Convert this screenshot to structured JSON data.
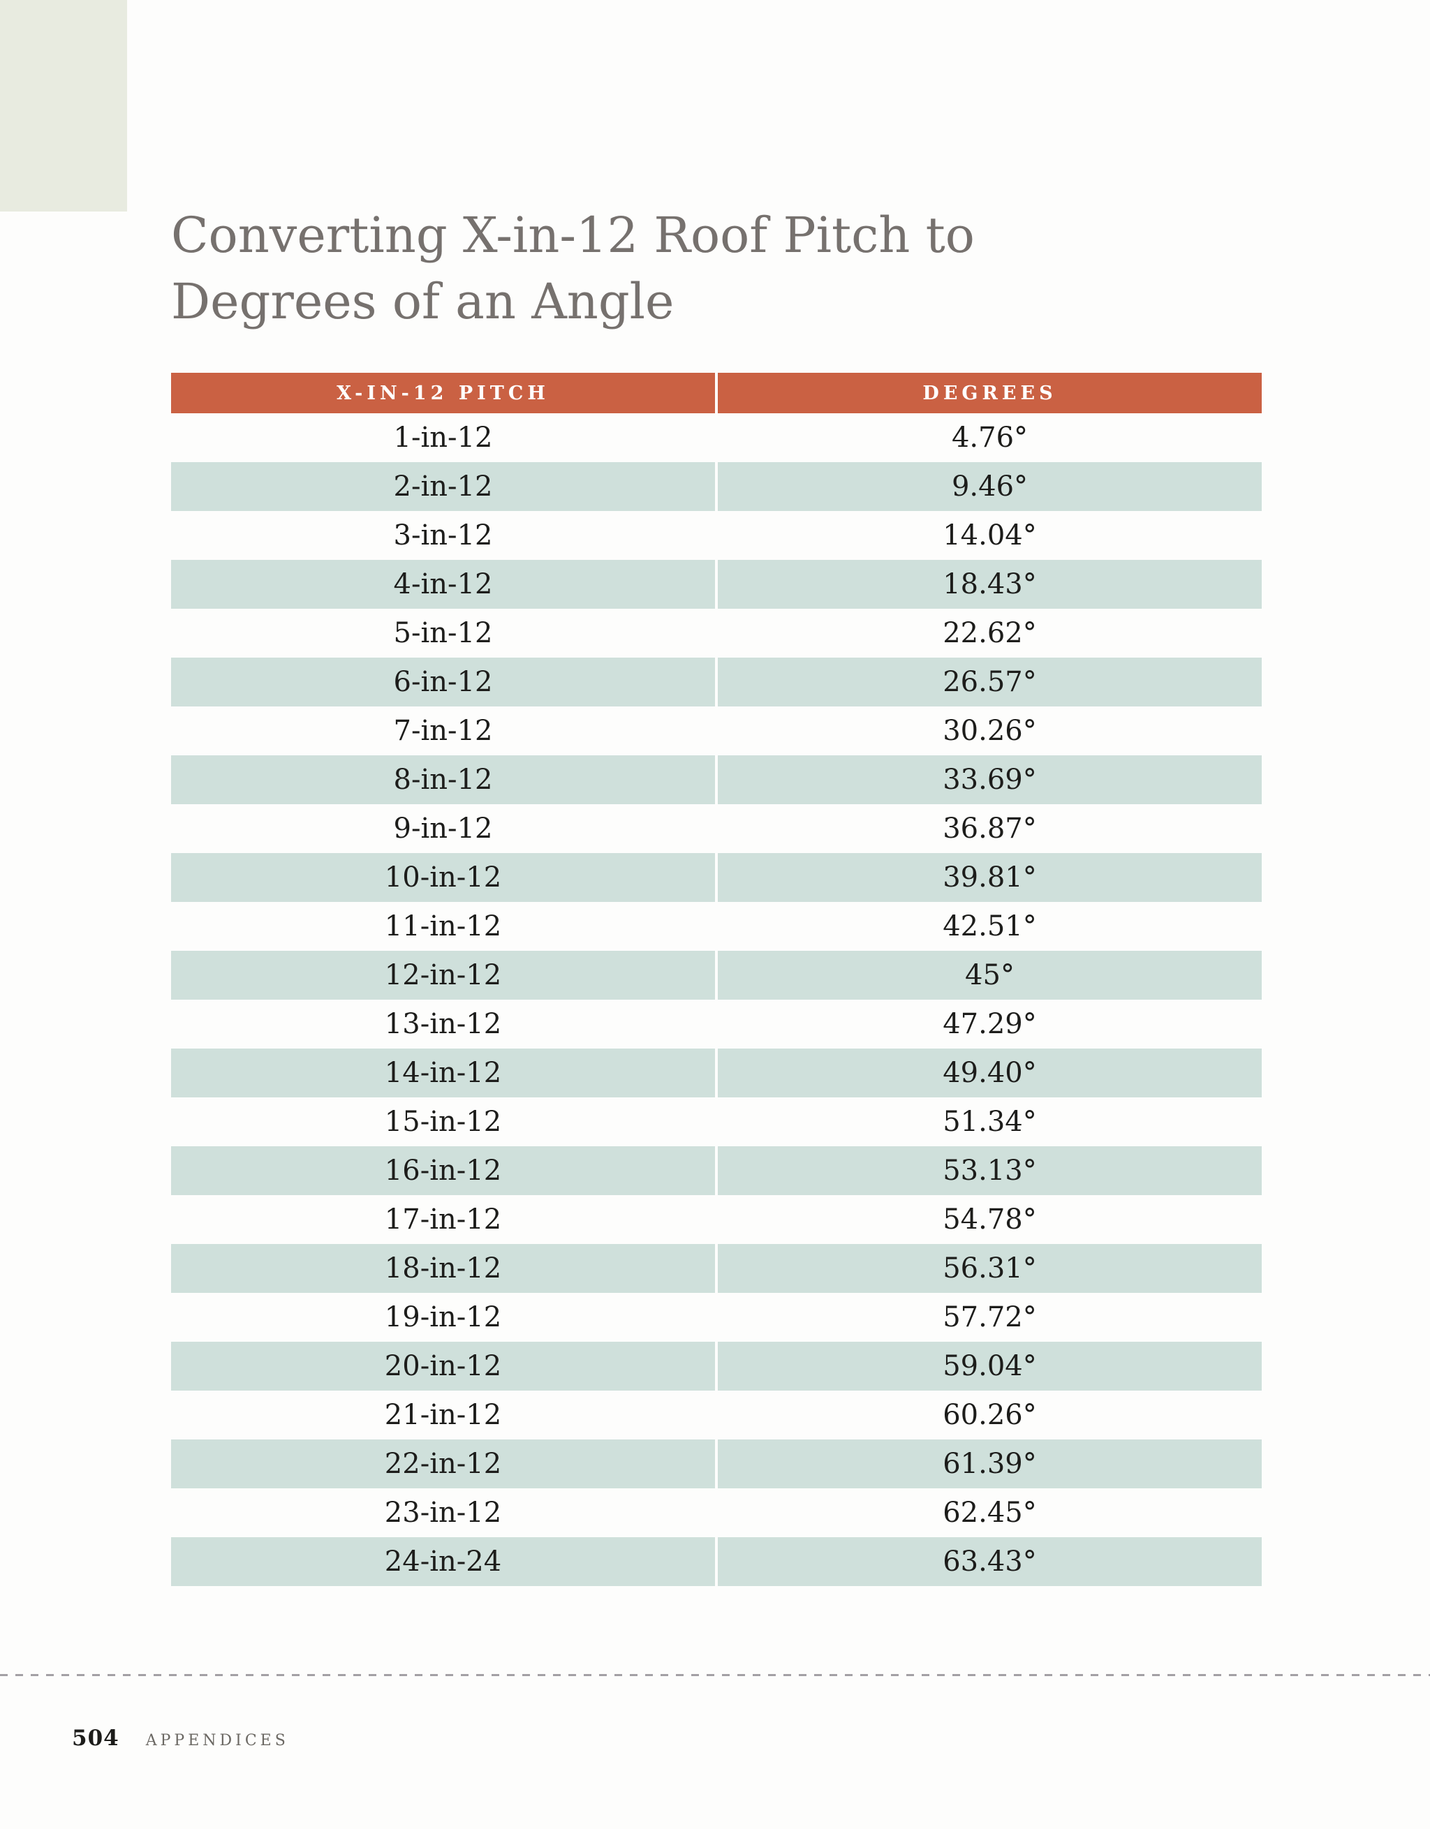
{
  "page": {
    "title_line1": "Converting X-in-12 Roof Pitch to",
    "title_line2": "Degrees of an Angle",
    "footer": {
      "page_number": "504",
      "section": "APPENDICES"
    }
  },
  "colors": {
    "header_bg": "#ca6143",
    "row_alt_bg": "#cfe0db",
    "corner_block_bg": "#e8ebe0",
    "title_text": "#76716e",
    "body_text": "#1d1d1b",
    "divider_dash": "#a3a0a4"
  },
  "table": {
    "headers": [
      "X-IN-12 PITCH",
      "DEGREES"
    ],
    "rows": [
      {
        "pitch": "1-in-12",
        "degrees": "4.76°"
      },
      {
        "pitch": "2-in-12",
        "degrees": "9.46°"
      },
      {
        "pitch": "3-in-12",
        "degrees": "14.04°"
      },
      {
        "pitch": "4-in-12",
        "degrees": "18.43°"
      },
      {
        "pitch": "5-in-12",
        "degrees": "22.62°"
      },
      {
        "pitch": "6-in-12",
        "degrees": "26.57°"
      },
      {
        "pitch": "7-in-12",
        "degrees": "30.26°"
      },
      {
        "pitch": "8-in-12",
        "degrees": "33.69°"
      },
      {
        "pitch": "9-in-12",
        "degrees": "36.87°"
      },
      {
        "pitch": "10-in-12",
        "degrees": "39.81°"
      },
      {
        "pitch": "11-in-12",
        "degrees": "42.51°"
      },
      {
        "pitch": "12-in-12",
        "degrees": "45°"
      },
      {
        "pitch": "13-in-12",
        "degrees": "47.29°"
      },
      {
        "pitch": "14-in-12",
        "degrees": "49.40°"
      },
      {
        "pitch": "15-in-12",
        "degrees": "51.34°"
      },
      {
        "pitch": "16-in-12",
        "degrees": "53.13°"
      },
      {
        "pitch": "17-in-12",
        "degrees": "54.78°"
      },
      {
        "pitch": "18-in-12",
        "degrees": "56.31°"
      },
      {
        "pitch": "19-in-12",
        "degrees": "57.72°"
      },
      {
        "pitch": "20-in-12",
        "degrees": "59.04°"
      },
      {
        "pitch": "21-in-12",
        "degrees": "60.26°"
      },
      {
        "pitch": "22-in-12",
        "degrees": "61.39°"
      },
      {
        "pitch": "23-in-12",
        "degrees": "62.45°"
      },
      {
        "pitch": "24-in-24",
        "degrees": "63.43°"
      }
    ]
  }
}
